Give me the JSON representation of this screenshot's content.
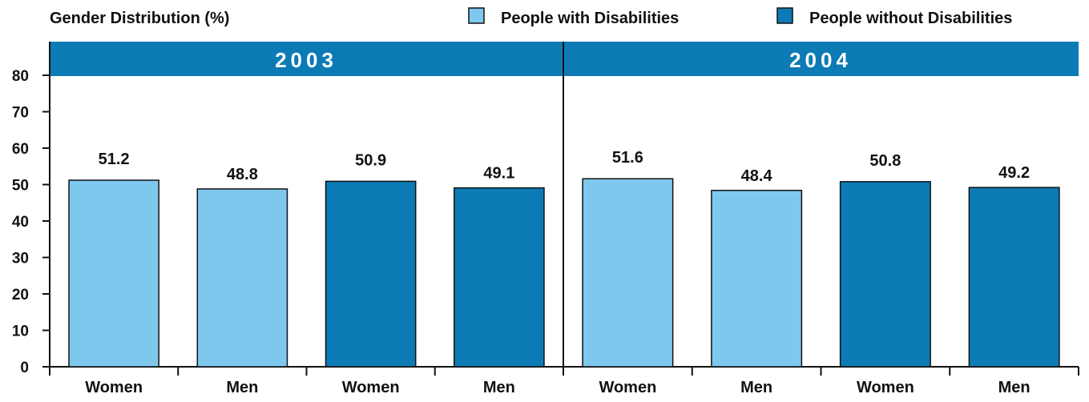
{
  "chart_data": {
    "type": "bar",
    "ylabel": "Gender Distribution (%)",
    "ylim": [
      0,
      80
    ],
    "yticks": [
      "0",
      "10",
      "20",
      "30",
      "40",
      "50",
      "60",
      "70",
      "80"
    ],
    "legend": {
      "placement": "top-right",
      "items": [
        {
          "name": "People with Disabilities",
          "color": "#7ec8ee"
        },
        {
          "name": "People without Disabilities",
          "color": "#0c7bb5"
        }
      ]
    },
    "panels": [
      {
        "title": "2003",
        "categories": [
          "Women",
          "Men",
          "Women",
          "Men"
        ],
        "groups": [
          "People with Disabilities",
          "People with Disabilities",
          "People without Disabilities",
          "People without Disabilities"
        ],
        "values": [
          51.2,
          48.8,
          50.9,
          49.1
        ],
        "labels": [
          "51.2",
          "48.8",
          "50.9",
          "49.1"
        ]
      },
      {
        "title": "2004",
        "categories": [
          "Women",
          "Men",
          "Women",
          "Men"
        ],
        "groups": [
          "People with Disabilities",
          "People with Disabilities",
          "People without Disabilities",
          "People without Disabilities"
        ],
        "values": [
          51.6,
          48.4,
          50.8,
          49.2
        ],
        "labels": [
          "51.6",
          "48.4",
          "50.8",
          "49.2"
        ]
      }
    ],
    "colors": {
      "header": "#0c7bb5",
      "header_text": "#ffffff",
      "axis": "#111111"
    }
  }
}
